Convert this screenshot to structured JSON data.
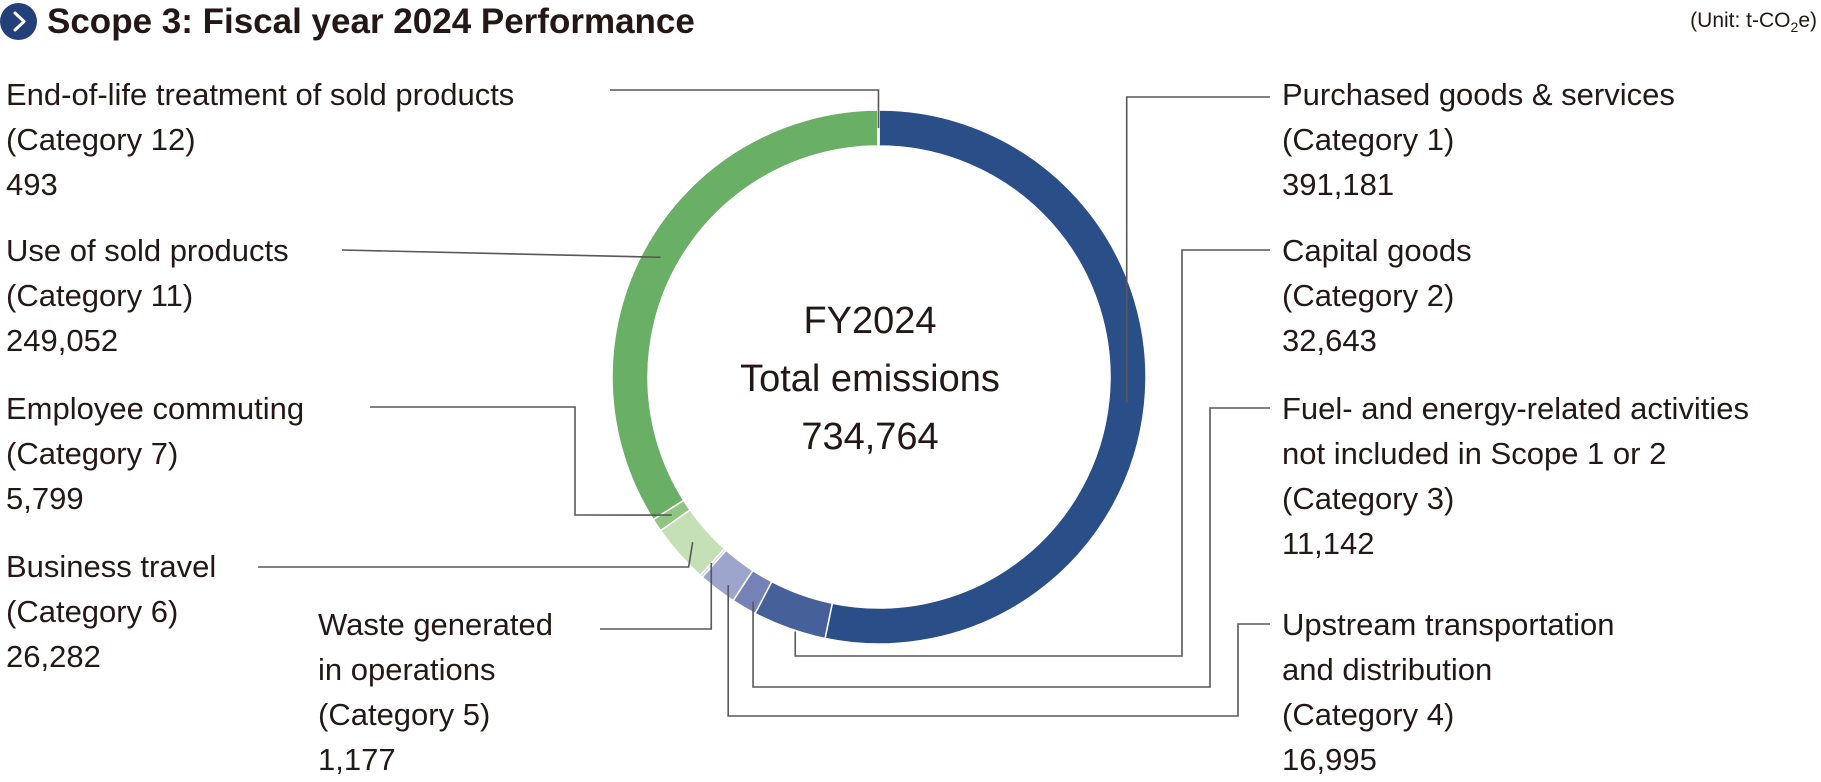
{
  "header": {
    "title": "Scope 3: Fiscal year 2024 Performance",
    "unit_prefix": "(Unit: t-CO",
    "unit_sub": "2",
    "unit_suffix": "e)",
    "icon": "chevron-right-icon"
  },
  "center": {
    "line1": "FY2024",
    "line2": "Total emissions",
    "line3": "734,764"
  },
  "chart_data": {
    "type": "pie",
    "total": 734764,
    "slices": [
      {
        "name_lines": [
          "Purchased goods & services",
          "(Category 1)"
        ],
        "value": 391181,
        "value_label": "391,181",
        "color": "#2a4e87"
      },
      {
        "name_lines": [
          "Capital goods",
          "(Category 2)"
        ],
        "value": 32643,
        "value_label": "32,643",
        "color": "#46609a"
      },
      {
        "name_lines": [
          "Fuel- and energy-related activities",
          "not included in Scope 1 or 2",
          "(Category 3)"
        ],
        "value": 11142,
        "value_label": "11,142",
        "color": "#7582b5"
      },
      {
        "name_lines": [
          "Upstream transportation",
          "and distribution",
          "(Category 4)"
        ],
        "value": 16995,
        "value_label": "16,995",
        "color": "#9da5cd"
      },
      {
        "name_lines": [
          "Waste generated",
          "in operations",
          "(Category 5)"
        ],
        "value": 1177,
        "value_label": "1,177",
        "color": "#c8cce4"
      },
      {
        "name_lines": [
          "Business travel",
          "(Category 6)"
        ],
        "value": 26282,
        "value_label": "26,282",
        "color": "#c5e0b6"
      },
      {
        "name_lines": [
          "Employee commuting",
          "(Category 7)"
        ],
        "value": 5799,
        "value_label": "5,799",
        "color": "#8fc482"
      },
      {
        "name_lines": [
          "Use of sold products",
          "(Category 11)"
        ],
        "value": 249052,
        "value_label": "249,052",
        "color": "#6aaf66"
      },
      {
        "name_lines": [
          "End-of-life treatment of sold products",
          "(Category 12)"
        ],
        "value": 493,
        "value_label": "493",
        "color": "#c9d86c"
      }
    ]
  }
}
